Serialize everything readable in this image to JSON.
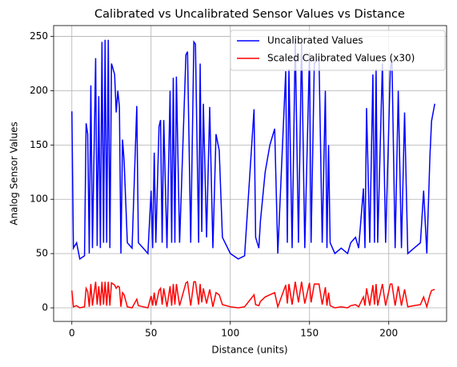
{
  "chart_data": {
    "type": "line",
    "title": "Calibrated vs Uncalibrated Sensor Values vs Distance",
    "xlabel": "Distance (units)",
    "ylabel": "Analog Sensor Values",
    "x": [
      0,
      1,
      3,
      5,
      8,
      9,
      10,
      11,
      12,
      13,
      15,
      16,
      17,
      18,
      19,
      20,
      21,
      22,
      23,
      24,
      25,
      27,
      28,
      29,
      30,
      31,
      32,
      33,
      35,
      38,
      41,
      42,
      45,
      48,
      50,
      51,
      52,
      53,
      55,
      56,
      57,
      58,
      60,
      62,
      63,
      64,
      65,
      66,
      68,
      72,
      73,
      75,
      77,
      78,
      80,
      81,
      82,
      83,
      85,
      87,
      89,
      91,
      93,
      95,
      100,
      105,
      109,
      115,
      116,
      118,
      119,
      122,
      125,
      128,
      130,
      135,
      136,
      137,
      139,
      141,
      143,
      145,
      147,
      150,
      151,
      153,
      156,
      158,
      160,
      161,
      162,
      163,
      166,
      170,
      174,
      176,
      179,
      181,
      184,
      185,
      186,
      188,
      190,
      191,
      192,
      193,
      196,
      198,
      201,
      202,
      204,
      206,
      208,
      210,
      212,
      216,
      220,
      222,
      224,
      226,
      227,
      229
    ],
    "series": [
      {
        "name": "Uncalibrated Values",
        "color": "#0000ff",
        "values": [
          181,
          55,
          60,
          45,
          48,
          170,
          160,
          50,
          205,
          55,
          230,
          57,
          195,
          55,
          245,
          60,
          247,
          60,
          247,
          55,
          225,
          215,
          180,
          200,
          185,
          50,
          155,
          135,
          60,
          55,
          186,
          60,
          55,
          50,
          108,
          55,
          143,
          60,
          167,
          173,
          60,
          173,
          55,
          200,
          60,
          212,
          60,
          213,
          60,
          233,
          236,
          60,
          245,
          243,
          60,
          225,
          70,
          188,
          65,
          185,
          55,
          160,
          145,
          65,
          50,
          45,
          48,
          183,
          65,
          55,
          80,
          125,
          150,
          165,
          50,
          218,
          60,
          220,
          55,
          248,
          60,
          245,
          55,
          235,
          60,
          225,
          230,
          60,
          200,
          55,
          150,
          60,
          50,
          55,
          50,
          60,
          65,
          55,
          110,
          55,
          184,
          60,
          215,
          60,
          220,
          60,
          225,
          60,
          220,
          229,
          55,
          200,
          55,
          180,
          50,
          55,
          60,
          108,
          50,
          140,
          172,
          188
        ]
      },
      {
        "name": "Scaled Calibrated Values (x30)",
        "color": "#ff0000",
        "values": [
          16,
          1,
          2,
          0,
          1,
          18,
          15,
          1,
          22,
          2,
          24,
          3,
          20,
          2,
          24,
          3,
          24,
          2,
          24,
          2,
          23,
          21,
          18,
          20,
          19,
          1,
          14,
          12,
          1,
          0,
          8,
          2,
          1,
          0,
          11,
          2,
          14,
          2,
          16,
          18,
          3,
          18,
          1,
          20,
          2,
          22,
          3,
          22,
          2,
          23,
          24,
          2,
          24,
          24,
          3,
          22,
          5,
          18,
          4,
          17,
          1,
          14,
          12,
          3,
          1,
          0,
          1,
          12,
          3,
          2,
          6,
          10,
          12,
          14,
          1,
          21,
          4,
          22,
          3,
          24,
          5,
          24,
          4,
          23,
          5,
          22,
          22,
          3,
          19,
          2,
          14,
          2,
          0,
          1,
          0,
          2,
          3,
          1,
          10,
          2,
          18,
          2,
          21,
          3,
          22,
          2,
          22,
          2,
          22,
          22,
          2,
          20,
          2,
          17,
          1,
          2,
          3,
          10,
          1,
          12,
          16,
          17
        ]
      }
    ],
    "xlim": [
      -11.5,
      236.5
    ],
    "xticks": [
      0,
      50,
      100,
      150,
      200
    ],
    "ylim": [
      -12.5,
      260
    ],
    "yticks": [
      0,
      50,
      100,
      150,
      200,
      250
    ],
    "grid": true,
    "legend": "upper right"
  }
}
